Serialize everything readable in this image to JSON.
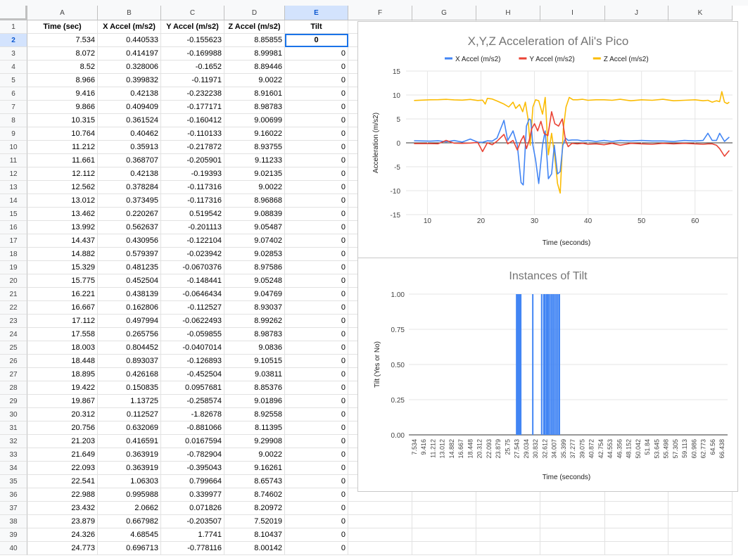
{
  "columns": [
    "A",
    "B",
    "C",
    "D",
    "E",
    "F",
    "G",
    "H",
    "I",
    "J",
    "K"
  ],
  "header_row": [
    "Time (sec)",
    "X Accel (m/s2)",
    "Y Accel (m/s2)",
    "Z Accel (m/s2)",
    "Tilt"
  ],
  "rows": [
    [
      "7.534",
      "0.440533",
      "-0.155623",
      "8.85855",
      "0"
    ],
    [
      "8.072",
      "0.414197",
      "-0.169988",
      "8.99981",
      "0"
    ],
    [
      "8.52",
      "0.328006",
      "-0.1652",
      "8.89446",
      "0"
    ],
    [
      "8.966",
      "0.399832",
      "-0.11971",
      "9.0022",
      "0"
    ],
    [
      "9.416",
      "0.42138",
      "-0.232238",
      "8.91601",
      "0"
    ],
    [
      "9.866",
      "0.409409",
      "-0.177171",
      "8.98783",
      "0"
    ],
    [
      "10.315",
      "0.361524",
      "-0.160412",
      "9.00699",
      "0"
    ],
    [
      "10.764",
      "0.40462",
      "-0.110133",
      "9.16022",
      "0"
    ],
    [
      "11.212",
      "0.35913",
      "-0.217872",
      "8.93755",
      "0"
    ],
    [
      "11.661",
      "0.368707",
      "-0.205901",
      "9.11233",
      "0"
    ],
    [
      "12.112",
      "0.42138",
      "-0.19393",
      "9.02135",
      "0"
    ],
    [
      "12.562",
      "0.378284",
      "-0.117316",
      "9.0022",
      "0"
    ],
    [
      "13.012",
      "0.373495",
      "-0.117316",
      "8.96868",
      "0"
    ],
    [
      "13.462",
      "0.220267",
      "0.519542",
      "9.08839",
      "0"
    ],
    [
      "13.992",
      "0.562637",
      "-0.201113",
      "9.05487",
      "0"
    ],
    [
      "14.437",
      "0.430956",
      "-0.122104",
      "9.07402",
      "0"
    ],
    [
      "14.882",
      "0.579397",
      "-0.023942",
      "9.02853",
      "0"
    ],
    [
      "15.329",
      "0.481235",
      "-0.0670376",
      "8.97586",
      "0"
    ],
    [
      "15.775",
      "0.452504",
      "-0.148441",
      "9.05248",
      "0"
    ],
    [
      "16.221",
      "0.438139",
      "-0.0646434",
      "9.04769",
      "0"
    ],
    [
      "16.667",
      "0.162806",
      "-0.112527",
      "8.93037",
      "0"
    ],
    [
      "17.112",
      "0.497994",
      "-0.0622493",
      "8.99262",
      "0"
    ],
    [
      "17.558",
      "0.265756",
      "-0.059855",
      "8.98783",
      "0"
    ],
    [
      "18.003",
      "0.804452",
      "-0.0407014",
      "9.0836",
      "0"
    ],
    [
      "18.448",
      "0.893037",
      "-0.126893",
      "9.10515",
      "0"
    ],
    [
      "18.895",
      "0.426168",
      "-0.452504",
      "9.03811",
      "0"
    ],
    [
      "19.422",
      "0.150835",
      "0.0957681",
      "8.85376",
      "0"
    ],
    [
      "19.867",
      "1.13725",
      "-0.258574",
      "9.01896",
      "0"
    ],
    [
      "20.312",
      "0.112527",
      "-1.82678",
      "8.92558",
      "0"
    ],
    [
      "20.756",
      "0.632069",
      "-0.881066",
      "8.11395",
      "0"
    ],
    [
      "21.203",
      "0.416591",
      "0.0167594",
      "9.29908",
      "0"
    ],
    [
      "21.649",
      "0.363919",
      "-0.782904",
      "9.0022",
      "0"
    ],
    [
      "22.093",
      "0.363919",
      "-0.395043",
      "9.16261",
      "0"
    ],
    [
      "22.541",
      "1.06303",
      "0.799664",
      "8.65743",
      "0"
    ],
    [
      "22.988",
      "0.995988",
      "0.339977",
      "8.74602",
      "0"
    ],
    [
      "23.432",
      "2.0662",
      "0.071826",
      "8.20972",
      "0"
    ],
    [
      "23.879",
      "0.667982",
      "-0.203507",
      "7.52019",
      "0"
    ],
    [
      "24.326",
      "4.68545",
      "1.7741",
      "8.10437",
      "0"
    ],
    [
      "24.773",
      "0.696713",
      "-0.778116",
      "8.00142",
      "0"
    ]
  ],
  "active_cell": {
    "row": 2,
    "col": "E"
  },
  "colors": {
    "x_series": "#4285f4",
    "y_series": "#ea4335",
    "z_series": "#fbbc04",
    "tilt_bar": "#4285f4",
    "selection": "#1a73e8"
  },
  "chart_data": [
    {
      "type": "line",
      "title": "X,Y,Z Acceleration of Ali's Pico",
      "xlabel": "Time (seconds)",
      "ylabel": "Acceleration (m/s2)",
      "xlim": [
        6,
        67
      ],
      "ylim": [
        -15,
        15
      ],
      "x_ticks": [
        10,
        20,
        30,
        40,
        50,
        60
      ],
      "y_ticks": [
        -15,
        -10,
        -5,
        0,
        5,
        10,
        15
      ],
      "legend_position": "top",
      "grid": true,
      "series": [
        {
          "name": "X Accel (m/s2)",
          "color": "#4285f4",
          "x": [
            7.5,
            9,
            10.5,
            12,
            13.5,
            15,
            16.5,
            18,
            19.4,
            20.3,
            21.2,
            22.1,
            23,
            24.3,
            25,
            26,
            26.8,
            27.5,
            27.9,
            28.5,
            29,
            29.3,
            29.7,
            30.2,
            30.8,
            31.5,
            32,
            32.6,
            33.2,
            33.7,
            34.3,
            34.8,
            35.3,
            35.8,
            36.3,
            37,
            38,
            39,
            40,
            41.5,
            43,
            44.5,
            46,
            48,
            50,
            52,
            54,
            56,
            58,
            60,
            61.5,
            62.4,
            63.2,
            64,
            64.6,
            65.5,
            66.4
          ],
          "y": [
            0.44,
            0.4,
            0.36,
            0.42,
            0.22,
            0.48,
            0.16,
            0.8,
            0.15,
            0.11,
            0.42,
            0.36,
            1.0,
            4.7,
            0.5,
            2.5,
            -0.5,
            -8.3,
            -8.8,
            3.5,
            5.0,
            4.8,
            -0.5,
            -3.5,
            -8.5,
            -0.5,
            2.5,
            -7.5,
            -6.5,
            -0.5,
            -6.5,
            -6.0,
            -0.5,
            1.0,
            0.5,
            0.6,
            0.6,
            0.4,
            0.5,
            0.3,
            0.5,
            0.3,
            0.5,
            0.4,
            0.5,
            0.4,
            0.4,
            0.3,
            0.5,
            0.4,
            0.5,
            2.0,
            0.5,
            0.5,
            2.0,
            0.3,
            1.2
          ]
        },
        {
          "name": "Y Accel (m/s2)",
          "color": "#ea4335",
          "x": [
            7.5,
            9,
            10.5,
            12,
            13.5,
            15,
            16.5,
            18,
            19.4,
            20.3,
            21.2,
            22.1,
            23,
            24.3,
            25,
            26,
            26.8,
            27.5,
            28,
            28.5,
            29,
            29.5,
            30,
            30.6,
            31.2,
            31.8,
            32.5,
            33.2,
            33.8,
            34.5,
            35.2,
            35.8,
            36.3,
            37,
            38,
            39,
            40,
            41.5,
            43,
            44.5,
            46,
            48,
            50,
            52,
            54,
            56,
            58,
            60,
            61.5,
            62.4,
            63.2,
            64,
            64.6,
            65.5,
            66.4
          ],
          "y": [
            -0.16,
            -0.16,
            -0.16,
            -0.19,
            0.52,
            -0.07,
            -0.11,
            -0.04,
            0.1,
            -1.83,
            0.02,
            -0.4,
            0.34,
            1.77,
            -0.2,
            0.5,
            -1.5,
            0.5,
            1.5,
            -1.2,
            0.5,
            3.0,
            4.0,
            2.5,
            4.5,
            2.0,
            1.5,
            6.5,
            4.0,
            3.5,
            5.0,
            0.5,
            -0.8,
            -0.1,
            -0.2,
            -0.1,
            -0.3,
            -0.2,
            -0.4,
            -0.1,
            -0.5,
            -0.1,
            -0.2,
            -0.3,
            -0.1,
            -0.2,
            -0.1,
            -0.2,
            -0.3,
            -0.2,
            -0.2,
            -0.5,
            -1.2,
            -2.8,
            -1.6
          ]
        },
        {
          "name": "Z Accel (m/s2)",
          "color": "#fbbc04",
          "x": [
            7.5,
            9,
            10.5,
            12,
            13.5,
            15,
            16.5,
            18,
            19.4,
            20.3,
            20.8,
            21.2,
            22.1,
            23,
            24.3,
            25.2,
            26,
            26.5,
            27.2,
            27.8,
            28.3,
            28.8,
            29.2,
            29.7,
            30.2,
            30.8,
            31.5,
            32,
            32.6,
            33.2,
            33.8,
            34.3,
            34.8,
            35.4,
            35.9,
            36.5,
            37.2,
            38,
            39,
            40,
            41.5,
            43,
            44.5,
            46,
            48,
            50,
            52,
            54,
            56,
            58,
            60,
            61.5,
            62.4,
            63.2,
            64,
            64.6,
            65,
            65.5,
            66,
            66.4
          ],
          "y": [
            8.86,
            8.92,
            9.0,
            9.02,
            9.09,
            8.98,
            8.93,
            9.08,
            8.85,
            8.93,
            8.11,
            9.3,
            9.16,
            8.75,
            8.1,
            7.5,
            8.5,
            7.2,
            8.0,
            6.5,
            8.5,
            5.0,
            -0.5,
            7.5,
            9.0,
            8.8,
            6.0,
            9.5,
            -2.5,
            2.0,
            -3.0,
            -8.5,
            -10.5,
            3.0,
            7.5,
            9.5,
            9.0,
            9.0,
            9.1,
            8.9,
            9.0,
            9.0,
            8.9,
            9.1,
            8.8,
            9.0,
            8.9,
            9.1,
            8.8,
            8.9,
            9.0,
            8.8,
            8.9,
            8.5,
            8.8,
            8.6,
            10.7,
            8.5,
            8.2,
            8.5
          ]
        }
      ]
    },
    {
      "type": "bar",
      "title": "Instances of Tilt",
      "xlabel": "Time (seconds)",
      "ylabel": "Tilt (Yes or No)",
      "ylim": [
        0,
        1
      ],
      "y_ticks": [
        "0.00",
        "0.25",
        "0.50",
        "0.75",
        "1.00"
      ],
      "x_tick_labels": [
        "7.534",
        "9.416",
        "11.212",
        "13.012",
        "14.882",
        "16.667",
        "18.448",
        "20.312",
        "22.093",
        "23.879",
        "25.75",
        "27.543",
        "29.034",
        "30.832",
        "32.612",
        "34.007",
        "35.399",
        "37.277",
        "39.075",
        "40.872",
        "42.754",
        "44.553",
        "46.356",
        "48.152",
        "50.042",
        "51.84",
        "53.645",
        "55.498",
        "57.305",
        "59.113",
        "60.986",
        "62.773",
        "64.56",
        "66.438"
      ],
      "x": [
        27.1,
        27.3,
        27.5,
        27.7,
        27.9,
        30.2,
        31.9,
        32.3,
        32.5,
        32.8,
        33.0,
        33.2,
        33.5,
        33.8,
        34.1,
        34.4,
        34.7,
        35.0,
        35.3
      ],
      "values": [
        1,
        1,
        1,
        1,
        1,
        1,
        1,
        1,
        1,
        1,
        1,
        1,
        1,
        1,
        1,
        1,
        1,
        1,
        1
      ],
      "xlim": [
        7.534,
        66.438
      ],
      "grid": true
    }
  ]
}
